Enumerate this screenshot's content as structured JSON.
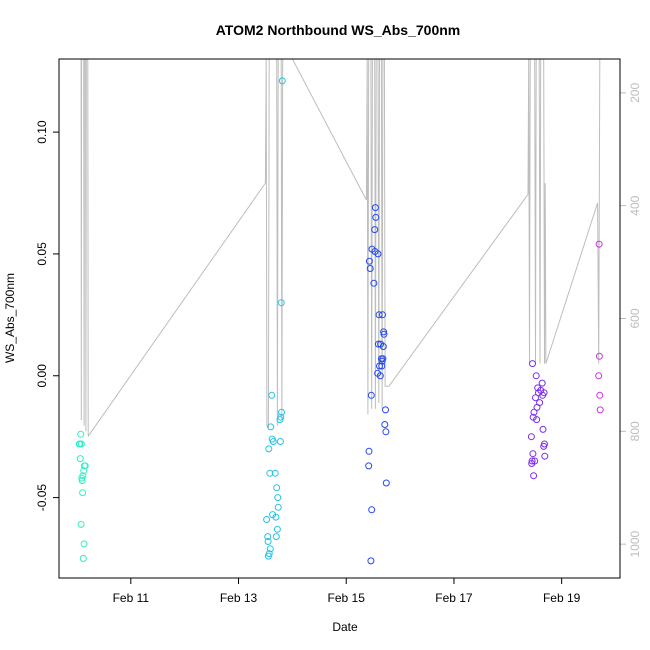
{
  "chart_data": {
    "type": "scatter",
    "title": "ATOM2 Northbound WS_Abs_700nm",
    "xlabel": "Date",
    "ylabel": "WS_Abs_700nm",
    "xlim": [
      "2014-02-09T16:00",
      "2014-02-20T02:00"
    ],
    "ylim": [
      -0.083,
      0.13
    ],
    "x_ticks": [
      {
        "x": "2014-02-11",
        "label": "Feb 11"
      },
      {
        "x": "2014-02-13",
        "label": "Feb 13"
      },
      {
        "x": "2014-02-15",
        "label": "Feb 15"
      },
      {
        "x": "2014-02-17",
        "label": "Feb 17"
      },
      {
        "x": "2014-02-19",
        "label": "Feb 19"
      }
    ],
    "y_ticks": [
      {
        "y": -0.05,
        "label": "-0.05"
      },
      {
        "y": 0.0,
        "label": "0.00"
      },
      {
        "y": 0.05,
        "label": "0.05"
      },
      {
        "y": 0.1,
        "label": "0.10"
      }
    ],
    "secondary_y": {
      "ylim": [
        1060,
        140
      ],
      "ticks": [
        {
          "y": 200,
          "label": "200"
        },
        {
          "y": 400,
          "label": "400"
        },
        {
          "y": 600,
          "label": "600"
        },
        {
          "y": 800,
          "label": "800"
        },
        {
          "y": 1000,
          "label": "1000"
        }
      ],
      "color": "#bdbdbd",
      "line": [
        [
          "2014-02-10T01:50",
          140
        ],
        [
          "2014-02-10T01:55",
          780
        ],
        [
          "2014-02-10T02:05",
          140
        ],
        [
          "2014-02-10T03:00",
          140
        ],
        [
          "2014-02-10T03:10",
          790
        ],
        [
          "2014-02-10T03:20",
          140
        ],
        [
          "2014-02-10T03:50",
          140
        ],
        [
          "2014-02-10T04:00",
          800
        ],
        [
          "2014-02-10T04:10",
          140
        ],
        [
          "2014-02-10T04:50",
          140
        ],
        [
          "2014-02-10T05:00",
          805
        ],
        [
          "2014-02-10T05:10",
          808
        ],
        [
          "2014-02-13T12:00",
          360
        ],
        [
          "2014-02-13T12:20",
          140
        ],
        [
          "2014-02-13T12:40",
          790
        ],
        [
          "2014-02-13T13:20",
          795
        ],
        [
          "2014-02-13T13:40",
          140
        ],
        [
          "2014-02-13T17:00",
          140
        ],
        [
          "2014-02-13T17:20",
          790
        ],
        [
          "2014-02-13T17:40",
          140
        ],
        [
          "2014-02-13T19:00",
          140
        ],
        [
          "2014-02-13T19:20",
          780
        ],
        [
          "2014-02-13T19:40",
          140
        ],
        [
          "2014-02-14T00:00",
          140
        ],
        [
          "2014-02-15T09:00",
          390
        ],
        [
          "2014-02-15T09:20",
          140
        ],
        [
          "2014-02-15T09:40",
          770
        ],
        [
          "2014-02-15T10:00",
          140
        ],
        [
          "2014-02-15T11:00",
          140
        ],
        [
          "2014-02-15T11:20",
          760
        ],
        [
          "2014-02-15T11:40",
          140
        ],
        [
          "2014-02-15T12:40",
          140
        ],
        [
          "2014-02-15T13:00",
          760
        ],
        [
          "2014-02-15T13:20",
          140
        ],
        [
          "2014-02-15T14:10",
          140
        ],
        [
          "2014-02-15T14:30",
          750
        ],
        [
          "2014-02-15T14:50",
          140
        ],
        [
          "2014-02-15T15:40",
          140
        ],
        [
          "2014-02-15T16:00",
          760
        ],
        [
          "2014-02-15T16:20",
          140
        ],
        [
          "2014-02-15T17:00",
          140
        ],
        [
          "2014-02-15T17:20",
          720
        ],
        [
          "2014-02-15T19:00",
          720
        ],
        [
          "2014-02-18T09:00",
          380
        ],
        [
          "2014-02-18T09:20",
          140
        ],
        [
          "2014-02-18T09:40",
          680
        ],
        [
          "2014-02-18T10:00",
          140
        ],
        [
          "2014-02-18T12:00",
          140
        ],
        [
          "2014-02-18T12:20",
          680
        ],
        [
          "2014-02-18T12:40",
          140
        ],
        [
          "2014-02-18T14:00",
          140
        ],
        [
          "2014-02-18T14:20",
          680
        ],
        [
          "2014-02-18T14:40",
          140
        ],
        [
          "2014-02-18T16:00",
          140
        ],
        [
          "2014-02-18T16:20",
          680
        ],
        [
          "2014-02-18T16:40",
          360
        ],
        [
          "2014-02-18T17:00",
          680
        ],
        [
          "2014-02-19T16:00",
          395
        ],
        [
          "2014-02-19T16:30",
          680
        ],
        [
          "2014-02-19T17:00",
          140
        ]
      ]
    },
    "series": [
      {
        "color": "#2ff0c6",
        "points": [
          [
            "2014-02-10T01:00",
            -0.028
          ],
          [
            "2014-02-10T01:20",
            -0.028
          ],
          [
            "2014-02-10T01:40",
            -0.024
          ],
          [
            "2014-02-10T02:00",
            -0.028
          ],
          [
            "2014-02-10T01:30",
            -0.034
          ],
          [
            "2014-02-10T02:10",
            -0.042
          ],
          [
            "2014-02-10T02:30",
            -0.048
          ],
          [
            "2014-02-10T02:40",
            -0.041
          ],
          [
            "2014-02-10T03:00",
            -0.039
          ],
          [
            "2014-02-10T03:20",
            -0.037
          ],
          [
            "2014-02-10T03:40",
            -0.037
          ],
          [
            "2014-02-10T01:50",
            -0.061
          ],
          [
            "2014-02-10T03:10",
            -0.069
          ],
          [
            "2014-02-10T02:50",
            -0.075
          ],
          [
            "2014-02-10T02:20",
            -0.043
          ]
        ]
      },
      {
        "color": "#27c3e3",
        "points": [
          [
            "2014-02-13T19:30",
            0.121
          ],
          [
            "2014-02-13T19:00",
            0.03
          ],
          [
            "2014-02-13T14:50",
            -0.008
          ],
          [
            "2014-02-13T19:10",
            -0.015
          ],
          [
            "2014-02-13T18:50",
            -0.017
          ],
          [
            "2014-02-13T18:30",
            -0.018
          ],
          [
            "2014-02-13T14:20",
            -0.021
          ],
          [
            "2014-02-13T15:00",
            -0.026
          ],
          [
            "2014-02-13T15:30",
            -0.027
          ],
          [
            "2014-02-13T18:40",
            -0.027
          ],
          [
            "2014-02-13T13:30",
            -0.03
          ],
          [
            "2014-02-13T14:00",
            -0.04
          ],
          [
            "2014-02-13T16:20",
            -0.04
          ],
          [
            "2014-02-13T17:00",
            -0.046
          ],
          [
            "2014-02-13T17:30",
            -0.05
          ],
          [
            "2014-02-13T17:40",
            -0.054
          ],
          [
            "2014-02-13T15:10",
            -0.057
          ],
          [
            "2014-02-13T16:40",
            -0.058
          ],
          [
            "2014-02-13T12:30",
            -0.059
          ],
          [
            "2014-02-13T17:20",
            -0.063
          ],
          [
            "2014-02-13T13:00",
            -0.066
          ],
          [
            "2014-02-13T16:50",
            -0.066
          ],
          [
            "2014-02-13T13:10",
            -0.068
          ],
          [
            "2014-02-13T14:10",
            -0.071
          ],
          [
            "2014-02-13T13:40",
            -0.073
          ],
          [
            "2014-02-13T13:20",
            -0.074
          ]
        ]
      },
      {
        "color": "#2548f0",
        "points": [
          [
            "2014-02-15T13:00",
            0.069
          ],
          [
            "2014-02-15T13:10",
            0.065
          ],
          [
            "2014-02-15T12:40",
            0.06
          ],
          [
            "2014-02-15T11:30",
            0.052
          ],
          [
            "2014-02-15T12:50",
            0.051
          ],
          [
            "2014-02-15T14:10",
            0.05
          ],
          [
            "2014-02-15T10:20",
            0.047
          ],
          [
            "2014-02-15T10:40",
            0.044
          ],
          [
            "2014-02-15T12:20",
            0.038
          ],
          [
            "2014-02-15T14:40",
            0.025
          ],
          [
            "2014-02-15T16:10",
            0.025
          ],
          [
            "2014-02-15T16:40",
            0.018
          ],
          [
            "2014-02-15T16:50",
            0.017
          ],
          [
            "2014-02-15T14:20",
            0.013
          ],
          [
            "2014-02-15T15:20",
            0.013
          ],
          [
            "2014-02-15T16:30",
            0.012
          ],
          [
            "2014-02-15T15:40",
            0.007
          ],
          [
            "2014-02-15T16:20",
            0.007
          ],
          [
            "2014-02-15T16:00",
            0.006
          ],
          [
            "2014-02-15T14:50",
            0.004
          ],
          [
            "2014-02-15T15:50",
            0.004
          ],
          [
            "2014-02-15T14:00",
            0.001
          ],
          [
            "2014-02-15T15:10",
            0.0
          ],
          [
            "2014-02-15T11:10",
            -0.008
          ],
          [
            "2014-02-15T17:30",
            -0.014
          ],
          [
            "2014-02-15T17:10",
            -0.02
          ],
          [
            "2014-02-15T17:40",
            -0.023
          ],
          [
            "2014-02-15T10:10",
            -0.031
          ],
          [
            "2014-02-15T10:00",
            -0.037
          ],
          [
            "2014-02-15T17:50",
            -0.044
          ],
          [
            "2014-02-15T11:20",
            -0.055
          ],
          [
            "2014-02-15T11:00",
            -0.076
          ]
        ]
      },
      {
        "color": "#7a2ef0",
        "points": [
          [
            "2014-02-18T11:00",
            0.005
          ],
          [
            "2014-02-18T12:40",
            0.0
          ],
          [
            "2014-02-18T15:20",
            -0.003
          ],
          [
            "2014-02-18T13:20",
            -0.005
          ],
          [
            "2014-02-18T14:40",
            -0.006
          ],
          [
            "2014-02-18T13:40",
            -0.007
          ],
          [
            "2014-02-18T16:10",
            -0.007
          ],
          [
            "2014-02-18T15:30",
            -0.008
          ],
          [
            "2014-02-18T12:20",
            -0.009
          ],
          [
            "2014-02-18T14:10",
            -0.011
          ],
          [
            "2014-02-18T13:00",
            -0.013
          ],
          [
            "2014-02-18T11:40",
            -0.015
          ],
          [
            "2014-02-18T11:20",
            -0.017
          ],
          [
            "2014-02-18T12:50",
            -0.018
          ],
          [
            "2014-02-18T15:40",
            -0.022
          ],
          [
            "2014-02-18T10:30",
            -0.025
          ],
          [
            "2014-02-18T16:20",
            -0.028
          ],
          [
            "2014-02-18T16:00",
            -0.029
          ],
          [
            "2014-02-18T11:10",
            -0.032
          ],
          [
            "2014-02-18T16:30",
            -0.033
          ],
          [
            "2014-02-18T10:50",
            -0.035
          ],
          [
            "2014-02-18T12:00",
            -0.035
          ],
          [
            "2014-02-18T10:40",
            -0.036
          ],
          [
            "2014-02-18T11:30",
            -0.041
          ]
        ]
      },
      {
        "color": "#d02ee6",
        "points": [
          [
            "2014-02-19T16:40",
            0.054
          ],
          [
            "2014-02-19T16:50",
            0.008
          ],
          [
            "2014-02-19T16:30",
            0.0
          ],
          [
            "2014-02-19T17:00",
            -0.008
          ],
          [
            "2014-02-19T17:10",
            -0.014
          ]
        ]
      }
    ]
  }
}
